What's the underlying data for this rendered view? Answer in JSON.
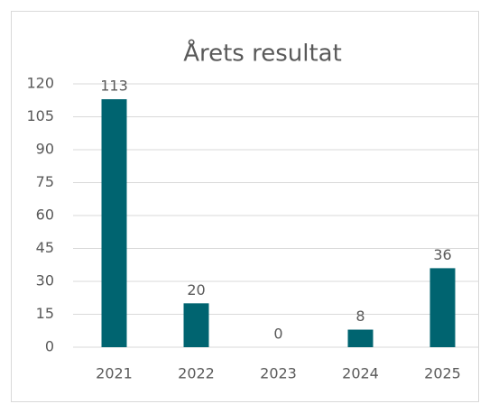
{
  "chart_data": {
    "type": "bar",
    "title": "Årets resultat",
    "categories": [
      "2021",
      "2022",
      "2023",
      "2024",
      "2025"
    ],
    "values": [
      113,
      20,
      0,
      8,
      36
    ],
    "color": "#006470",
    "ylim": [
      0,
      120
    ],
    "yticks": [
      0,
      15,
      30,
      45,
      60,
      75,
      90,
      105,
      120
    ],
    "grid": true
  }
}
